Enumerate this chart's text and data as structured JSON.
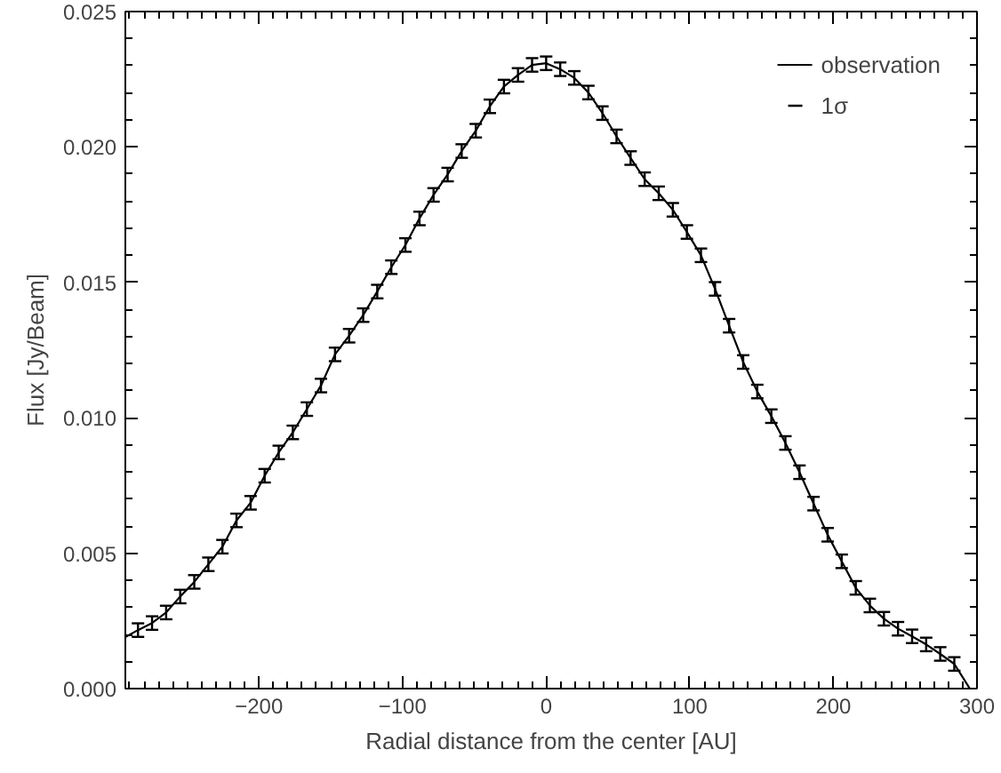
{
  "chart_data": {
    "type": "line",
    "xlabel": "Radial distance from the center [AU]",
    "ylabel": "Flux [Jy/Beam]",
    "xlim": [
      -293,
      300
    ],
    "ylim": [
      0,
      0.025
    ],
    "xticks": [
      -200,
      -100,
      0,
      100,
      200,
      300
    ],
    "yticks": [
      {
        "value": 0,
        "label": "0.000"
      },
      {
        "value": 0.005,
        "label": "0.005"
      },
      {
        "value": 0.01,
        "label": "0.010"
      },
      {
        "value": 0.015,
        "label": "0.015"
      },
      {
        "value": 0.02,
        "label": "0.020"
      },
      {
        "value": 0.025,
        "label": "0.025"
      }
    ],
    "grid": false,
    "legend": "top right",
    "marker": "none",
    "line_style": "solid",
    "annotations": [
      "1σ"
    ],
    "series": [
      {
        "name": "observation",
        "color": "#000000",
        "x": [
          -293,
          -284.2,
          -274.4,
          -264.6,
          -254.8,
          -245,
          -235.2,
          -225.4,
          -215.6,
          -205.8,
          -196,
          -186.2,
          -176.4,
          -166.6,
          -156.8,
          -147,
          -137.2,
          -127.4,
          -117.6,
          -107.8,
          -98,
          -88.2,
          -78.4,
          -68.6,
          -58.8,
          -49,
          -39.2,
          -29.4,
          -19.6,
          -9.8,
          0,
          9.8,
          19.6,
          29.4,
          39.2,
          49,
          58.8,
          68.6,
          78.4,
          88.2,
          98,
          107.8,
          117.6,
          127.4,
          137.2,
          147,
          156.8,
          166.6,
          176.4,
          186.2,
          196,
          205.8,
          215.6,
          225.4,
          235.2,
          245,
          254.8,
          264.6,
          274.4,
          284.2,
          295
        ],
        "values": [
          0.0019,
          0.00216,
          0.00242,
          0.00281,
          0.0034,
          0.00394,
          0.00459,
          0.00524,
          0.00621,
          0.00686,
          0.00786,
          0.00872,
          0.00946,
          0.01032,
          0.01119,
          0.01234,
          0.01303,
          0.01379,
          0.01466,
          0.01556,
          0.01638,
          0.01736,
          0.01823,
          0.01898,
          0.01985,
          0.0206,
          0.0215,
          0.02223,
          0.02266,
          0.02303,
          0.02309,
          0.02287,
          0.02255,
          0.02201,
          0.02125,
          0.02039,
          0.01959,
          0.01881,
          0.01829,
          0.01768,
          0.01686,
          0.016,
          0.01476,
          0.0134,
          0.01206,
          0.01097,
          0.01006,
          0.00907,
          0.00799,
          0.00683,
          0.00568,
          0.0047,
          0.00372,
          0.00307,
          0.00258,
          0.00221,
          0.00193,
          0.00163,
          0.00128,
          0.00091,
          0.0
        ],
        "errors": [
          null,
          0.00025,
          0.00025,
          0.00025,
          0.00025,
          0.00025,
          0.00025,
          0.00025,
          0.00025,
          0.00025,
          0.00025,
          0.00025,
          0.00025,
          0.00025,
          0.00025,
          0.00025,
          0.00025,
          0.00025,
          0.00025,
          0.00025,
          0.00025,
          0.00025,
          0.00025,
          0.00025,
          0.00025,
          0.00025,
          0.00025,
          0.00025,
          0.00025,
          0.00025,
          0.00025,
          0.00025,
          0.00025,
          0.00025,
          0.00025,
          0.00025,
          0.00025,
          0.00025,
          0.00025,
          0.00025,
          0.00025,
          0.00025,
          0.00025,
          0.00025,
          0.00025,
          0.00025,
          0.00025,
          0.00025,
          0.00025,
          0.00025,
          0.00025,
          0.00025,
          0.00025,
          0.00025,
          0.00025,
          0.00025,
          0.00025,
          0.00025,
          0.00025,
          0.00025,
          null
        ]
      }
    ]
  }
}
